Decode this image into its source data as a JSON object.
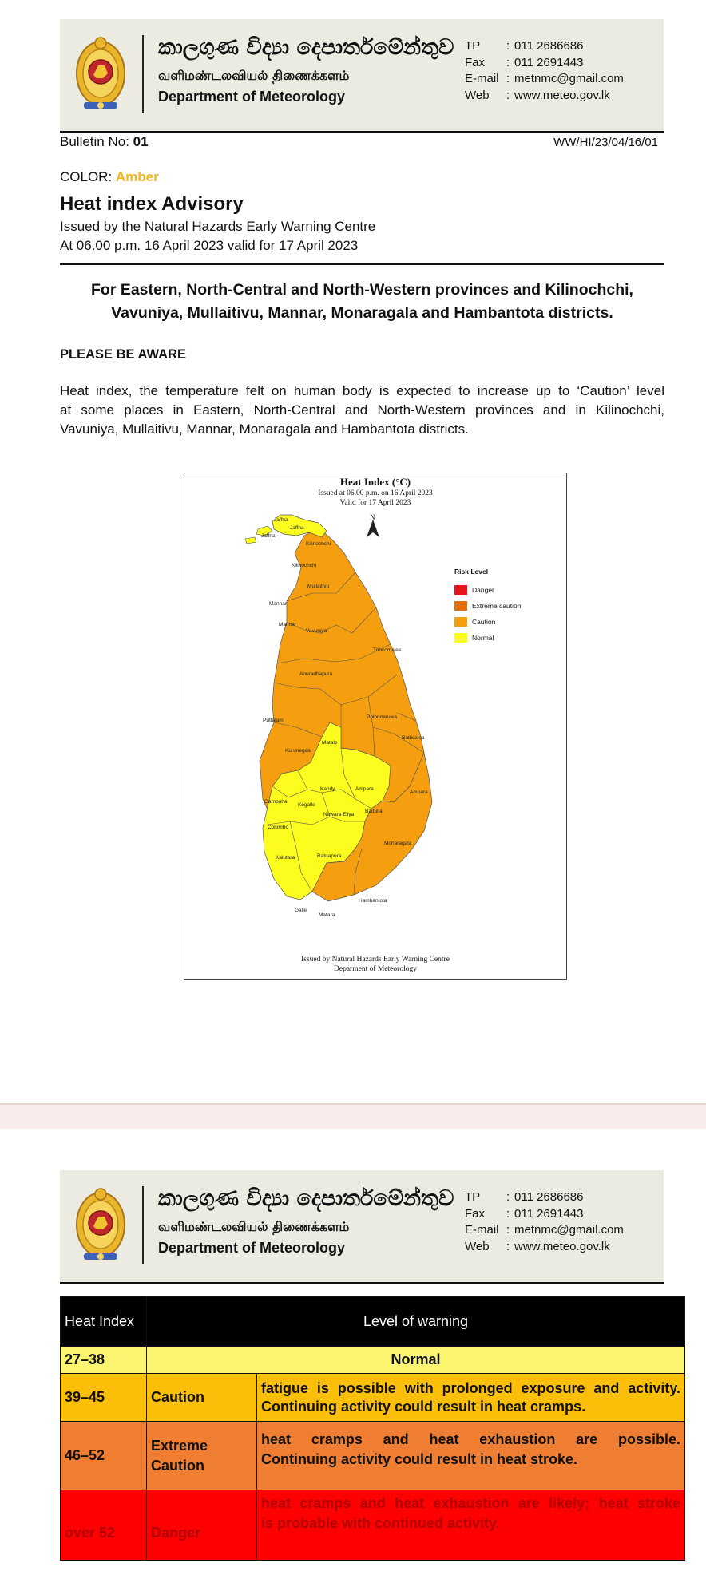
{
  "letterhead": {
    "sinhala": "කාලගුණ විද්‍යා දෙපාර්තමේන්තුව",
    "tamil": "வளிமண்டலவியல் திணைக்களம்",
    "english": "Department of Meteorology",
    "contacts": [
      {
        "label": "TP",
        "value": "011 2686686"
      },
      {
        "label": "Fax",
        "value": "011 2691443"
      },
      {
        "label": "E-mail",
        "value": "metnmc@gmail.com"
      },
      {
        "label": "Web",
        "value": "www.meteo.gov.lk"
      }
    ]
  },
  "bulletin": {
    "label": "Bulletin No: ",
    "number": "01",
    "reference": "WW/HI/23/04/16/01",
    "color_label": "COLOR: ",
    "color_value": "Amber",
    "color_hex": "#f2b51d",
    "title": "Heat index Advisory",
    "issued_by": "Issued by the Natural Hazards Early Warning Centre",
    "validity": "At 06.00 p.m. 16 April 2023 valid for 17 April 2023",
    "headline_1": "For Eastern, North-Central and North-Western provinces and Kilinochchi,",
    "headline_2": "Vavuniya, Mullaitivu, Mannar, Monaragala and Hambantota districts.",
    "aware": "PLEASE BE AWARE",
    "body_1": "Heat index, the temperature felt on human body is expected to increase up to ‘Caution’ level",
    "body_2": "at some places in Eastern, North-Central and North-Western provinces and in Kilinochchi,",
    "body_3": "Vavuniya, Mullaitivu, Mannar, Monaragala and Hambantota districts."
  },
  "map": {
    "title": "Heat Index (°C)",
    "issued": "Issued at 06.00 p.m. on 16 April 2023",
    "valid": "Valid for  17 April 2023",
    "north": "N",
    "footer_1": "Issued by Natural Hazards Early Warning Centre",
    "footer_2": "Deparment of Meteorology",
    "legend_title": "Risk Level",
    "legend": [
      {
        "label": "Danger",
        "color": "#e8141b"
      },
      {
        "label": "Extreme caution",
        "color": "#e1700f"
      },
      {
        "label": "Caution",
        "color": "#f59f10"
      },
      {
        "label": "Normal",
        "color": "#fcfc1f"
      }
    ],
    "districts": {
      "jaffna": "Jaffna",
      "jaffna_islands": "Jaffna",
      "jaffna_w": "Jaffna",
      "kilinochchi_n": "Kilinochchi",
      "kilinochchi": "Kilinochchi",
      "mullaitivu": "Mullaitivu",
      "mannar": "Mannar",
      "mannar_isl": "Mannar",
      "vavuniya": "Vavuniya",
      "trincomalee": "Trincomalee",
      "anuradhapura": "Anuradhapura",
      "polonnaruwa": "Polonnaruwa",
      "puttalam": "Puttalam",
      "batticaloa": "Batticaloa",
      "matale": "Matale",
      "kurunegala": "Kurunegala",
      "kandy": "Kandy",
      "ampara": "Ampara",
      "gampaha": "Gampaha",
      "kegalle": "Kegalle",
      "badulla": "Badulla",
      "nuwara_eliya": "Nuwara Eliya",
      "colombo": "Colombo",
      "monaragala": "Monaragala",
      "kalutara": "Kalutara",
      "ratnapura": "Ratnapura",
      "hambantota": "Hambantota",
      "galle": "Galle",
      "matara": "Matara"
    },
    "colors": {
      "normal": "#fcfc1f",
      "caution": "#f59f10"
    }
  },
  "warning_table": {
    "header_col1": "Heat Index",
    "header_col2": "Level of warning",
    "rows": [
      {
        "range": "27–38",
        "level": "Normal",
        "desc": "",
        "color": "#fbf571"
      },
      {
        "range": "39–45",
        "level": "Caution",
        "desc_1": "fatigue is possible with prolonged exposure and activity.",
        "desc_2": "Continuing activity could result in heat cramps.",
        "color": "#fbbf0a"
      },
      {
        "range": "46–52",
        "level_1": "Extreme",
        "level_2": "Caution",
        "desc_1": "heat cramps and heat exhaustion are possible.",
        "desc_2": "Continuing activity could result in heat stroke.",
        "color": "#ef7e33"
      },
      {
        "range": "over 52",
        "level": "Danger",
        "desc_1": "heat cramps and heat exhaustion are likely; heat stroke",
        "desc_2": "is probable with continued activity.",
        "color": "#fe0000",
        "text_color": "#b10000"
      }
    ]
  }
}
